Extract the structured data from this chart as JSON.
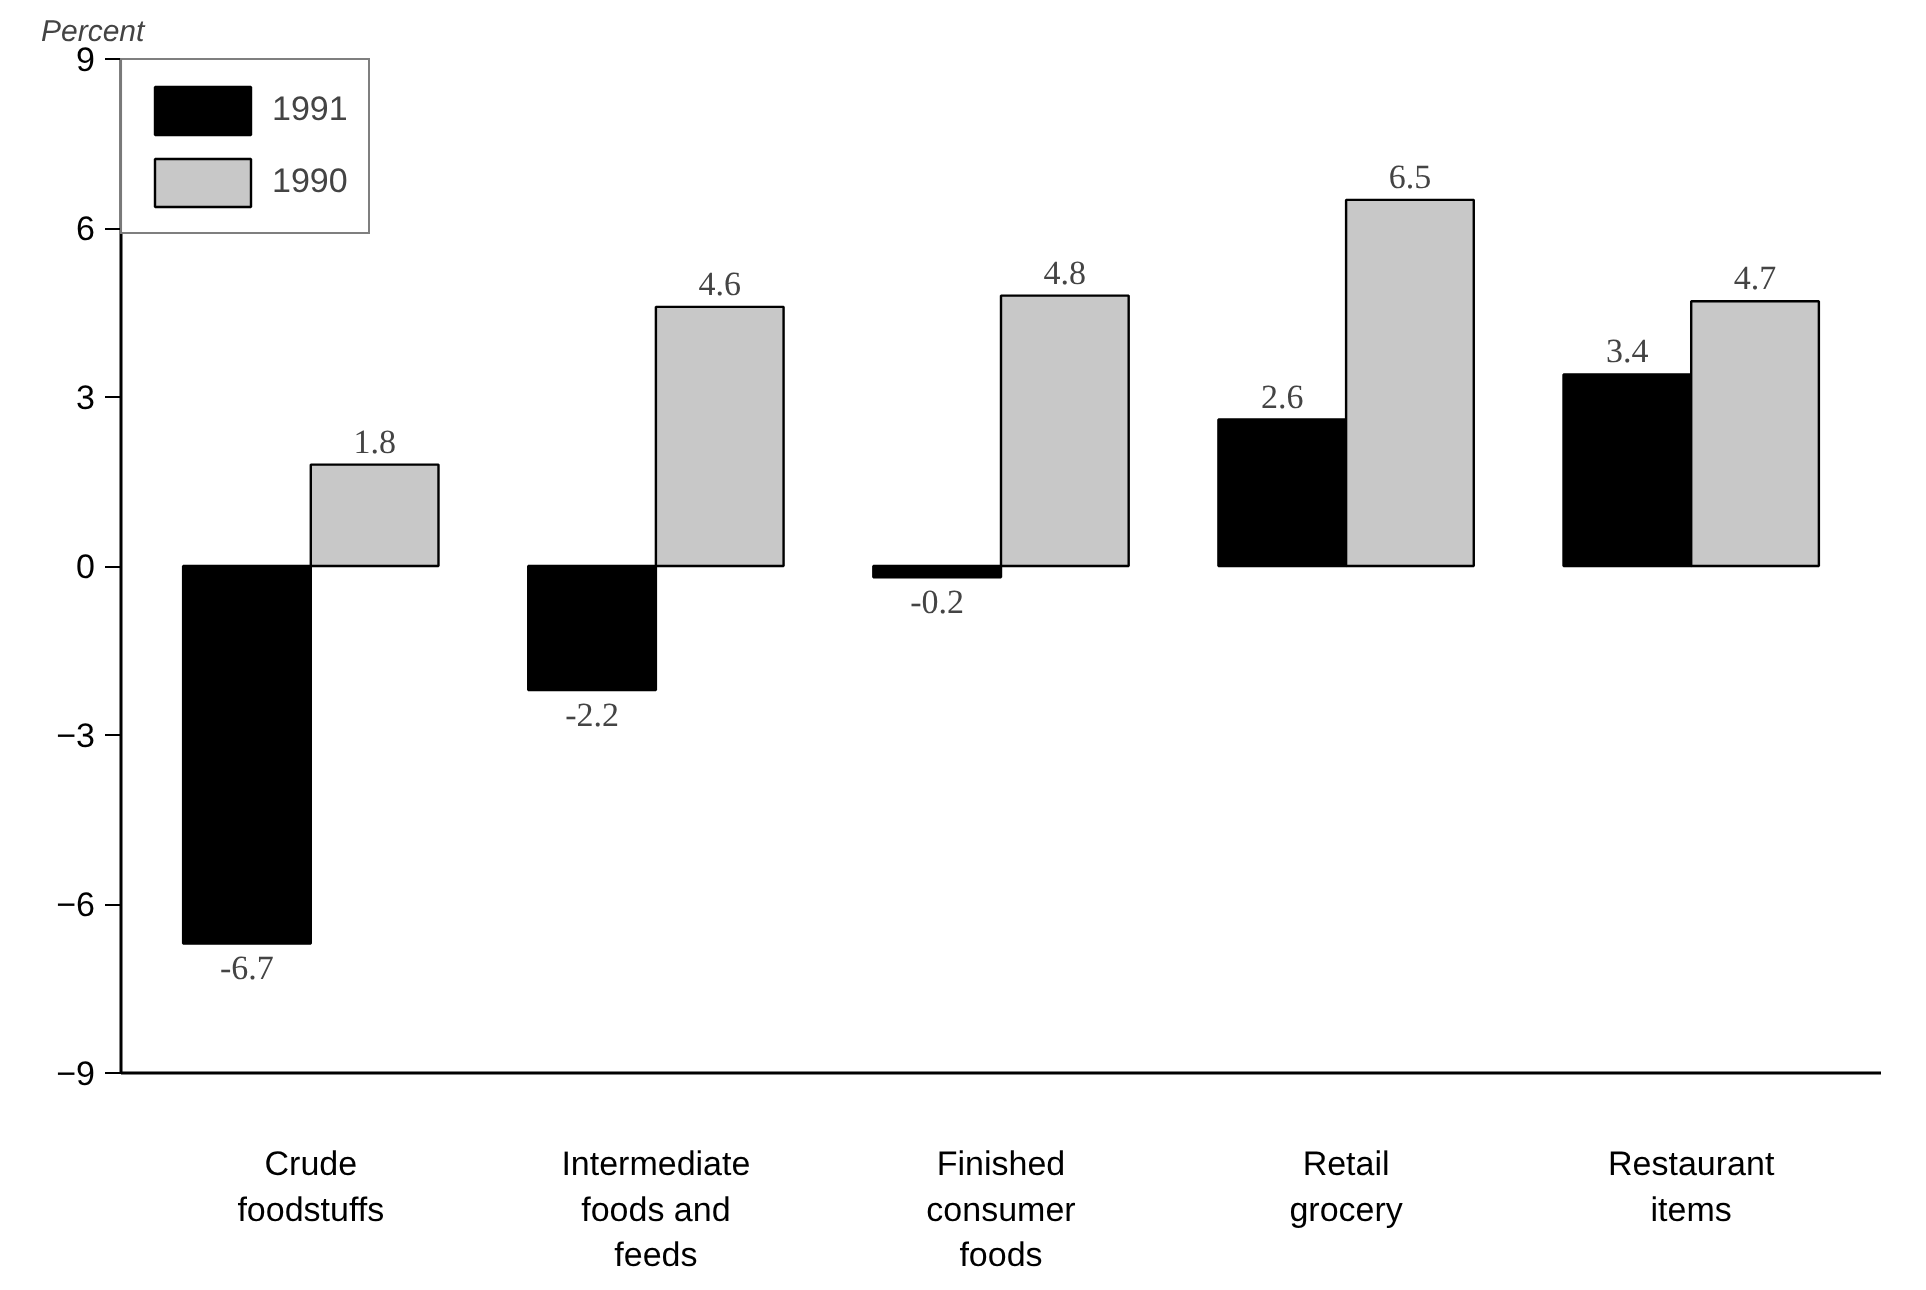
{
  "chart_data": {
    "type": "bar",
    "ylabel": "Percent",
    "categories": [
      "Crude foodstuffs",
      "Intermediate foods and feeds",
      "Finished consumer foods",
      "Retail grocery",
      "Restaurant items"
    ],
    "series": [
      {
        "name": "1991",
        "color": "#000000",
        "values": [
          -6.7,
          -2.2,
          -0.2,
          2.6,
          3.4
        ]
      },
      {
        "name": "1990",
        "color": "#c8c8c8",
        "values": [
          1.8,
          4.6,
          4.8,
          6.5,
          4.7
        ]
      }
    ],
    "ylim": [
      -9,
      9
    ],
    "yticks": [
      -9,
      -6,
      -3,
      0,
      3,
      6,
      9
    ],
    "data_labels": true,
    "grid": false,
    "legend": "top left"
  }
}
